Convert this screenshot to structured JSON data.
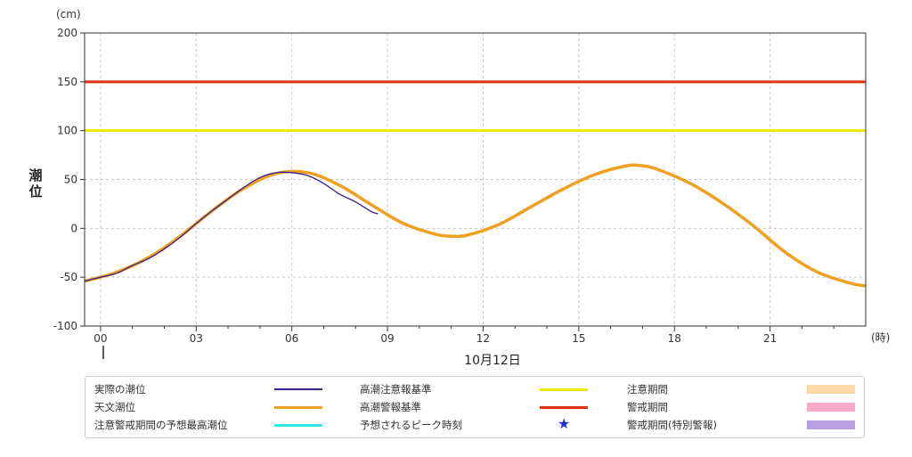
{
  "chart_data": {
    "type": "line",
    "y_unit": "(cm)",
    "x_unit": "(時)",
    "ylabel": "潮位",
    "xlabel": "10月12日",
    "ylim": [
      -100,
      200
    ],
    "xlim": [
      -0.5,
      24.0
    ],
    "grid": true,
    "y_ticks": [
      "200",
      "150",
      "100",
      "50",
      "0",
      "-50",
      "-100"
    ],
    "x_ticks": [
      "00",
      "03",
      "06",
      "09",
      "12",
      "15",
      "18",
      "21"
    ],
    "thresholds": [
      {
        "name": "高潮注意報基準",
        "value": 100,
        "color": "#f0e600"
      },
      {
        "name": "高潮警報基準",
        "value": 150,
        "color": "#e03010"
      }
    ],
    "series": [
      {
        "name": "天文潮位",
        "color": "#f0a020",
        "x": [
          -0.5,
          0.5,
          1.5,
          2.5,
          3.5,
          4.5,
          5.5,
          6.5,
          7.5,
          8.5,
          9.5,
          10.5,
          11.0,
          11.5,
          12.5,
          13.5,
          14.5,
          15.5,
          16.5,
          17.0,
          17.5,
          18.5,
          19.5,
          20.5,
          21.5,
          22.5,
          23.5,
          24.0
        ],
        "values": [
          -54,
          -45,
          -30,
          -8,
          18,
          41,
          56,
          57,
          44,
          24,
          5,
          -6,
          -8,
          -7,
          4,
          22,
          40,
          55,
          64,
          64,
          60,
          46,
          26,
          2,
          -25,
          -45,
          -56,
          -59
        ]
      },
      {
        "name": "実際の潮位",
        "color": "#3a1f8f",
        "x": [
          -0.5,
          0.0,
          0.5,
          1.0,
          1.5,
          2.0,
          2.5,
          3.0,
          3.5,
          4.0,
          4.5,
          5.0,
          5.5,
          6.0,
          6.5,
          7.0,
          7.5,
          8.0,
          8.5,
          8.7
        ],
        "values": [
          -54,
          -50,
          -46,
          -38,
          -31,
          -21,
          -9,
          5,
          18,
          30,
          42,
          52,
          57,
          57,
          54,
          46,
          35,
          27,
          17,
          15
        ]
      }
    ]
  },
  "legend": [
    {
      "label": "実際の潮位",
      "type": "line",
      "color": "#3a1f8f"
    },
    {
      "label": "高潮注意報基準",
      "type": "line",
      "color": "#f0e600"
    },
    {
      "label": "注意期間",
      "type": "box",
      "color": "#fbd9a8"
    },
    {
      "label": "天文潮位",
      "type": "line",
      "color": "#f0a020"
    },
    {
      "label": "高潮警報基準",
      "type": "line",
      "color": "#e03010"
    },
    {
      "label": "警戒期間",
      "type": "box",
      "color": "#f6aac8"
    },
    {
      "label": "注意警戒期間の予想最高潮位",
      "type": "line",
      "color": "#33e8e8"
    },
    {
      "label": "予想されるピーク時刻",
      "type": "star",
      "color": "#1a2fd8"
    },
    {
      "label": "警戒期間(特別警報)",
      "type": "box",
      "color": "#b8a0e0"
    }
  ]
}
